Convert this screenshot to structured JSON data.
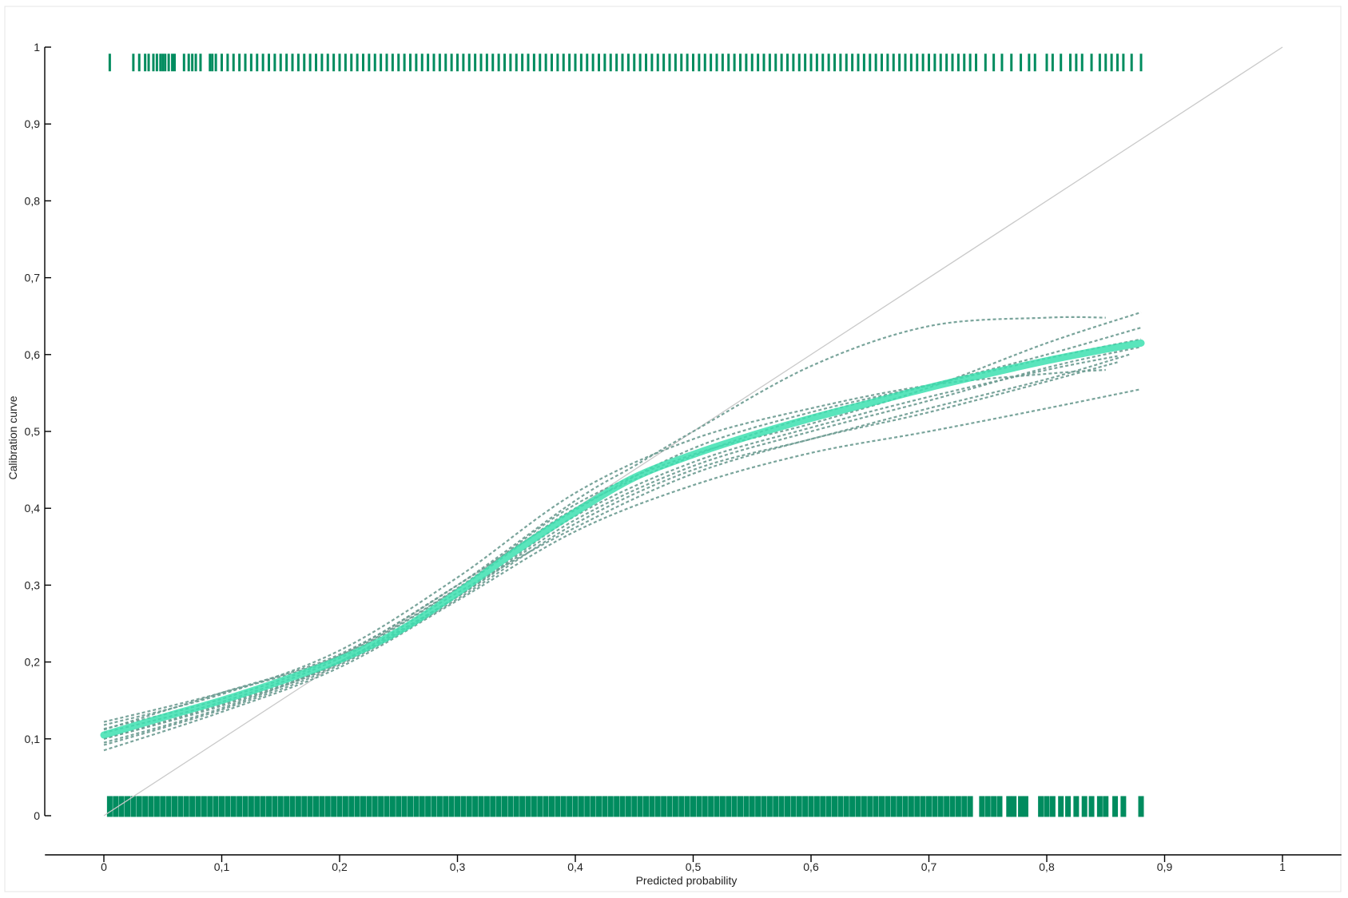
{
  "chart_data": {
    "type": "line",
    "title": "",
    "xlabel": "Predicted probability",
    "ylabel": "Calibration curve",
    "xlim": [
      -0.05,
      1.05
    ],
    "ylim": [
      0,
      1
    ],
    "x_ticks": [
      "0",
      "0,1",
      "0,2",
      "0,3",
      "0,4",
      "0,5",
      "0,6",
      "0,7",
      "0,8",
      "0,9",
      "1"
    ],
    "y_ticks": [
      "0",
      "0,1",
      "0,2",
      "0,3",
      "0,4",
      "0,5",
      "0,6",
      "0,7",
      "0,8",
      "0,9",
      "1"
    ],
    "grid": false,
    "legend": "none",
    "colors": {
      "rug": "#008c5f",
      "mean_curve": "#3de0b0",
      "bootstrap_curves": "#6a9a90",
      "reference_line": "#c9c9c9",
      "axes": "#000000"
    },
    "reference_line": {
      "x": [
        0,
        1
      ],
      "y": [
        0,
        1
      ]
    },
    "mean_curve": {
      "x": [
        0,
        0.05,
        0.1,
        0.15,
        0.2,
        0.25,
        0.3,
        0.35,
        0.4,
        0.45,
        0.5,
        0.55,
        0.6,
        0.65,
        0.7,
        0.75,
        0.8,
        0.85,
        0.88
      ],
      "y": [
        0.105,
        0.128,
        0.15,
        0.175,
        0.203,
        0.24,
        0.29,
        0.345,
        0.395,
        0.44,
        0.47,
        0.495,
        0.517,
        0.537,
        0.557,
        0.575,
        0.592,
        0.607,
        0.615
      ]
    },
    "bootstrap_curves": [
      {
        "x": [
          0,
          0.1,
          0.2,
          0.3,
          0.4,
          0.45,
          0.5,
          0.6,
          0.7,
          0.8,
          0.85
        ],
        "y": [
          0.112,
          0.16,
          0.21,
          0.3,
          0.41,
          0.455,
          0.5,
          0.585,
          0.637,
          0.648,
          0.648
        ]
      },
      {
        "x": [
          0,
          0.1,
          0.2,
          0.3,
          0.4,
          0.5,
          0.6,
          0.7,
          0.8,
          0.88
        ],
        "y": [
          0.085,
          0.135,
          0.193,
          0.28,
          0.37,
          0.43,
          0.472,
          0.5,
          0.53,
          0.555
        ]
      },
      {
        "x": [
          0,
          0.1,
          0.2,
          0.3,
          0.4,
          0.5,
          0.6,
          0.7,
          0.8,
          0.88
        ],
        "y": [
          0.122,
          0.16,
          0.208,
          0.296,
          0.405,
          0.47,
          0.51,
          0.557,
          0.615,
          0.655
        ]
      },
      {
        "x": [
          0,
          0.1,
          0.2,
          0.3,
          0.4,
          0.5,
          0.6,
          0.7,
          0.8,
          0.86
        ],
        "y": [
          0.1,
          0.145,
          0.2,
          0.29,
          0.375,
          0.445,
          0.49,
          0.525,
          0.565,
          0.59
        ]
      },
      {
        "x": [
          0,
          0.1,
          0.2,
          0.3,
          0.4,
          0.5,
          0.6,
          0.7,
          0.8,
          0.88
        ],
        "y": [
          0.095,
          0.14,
          0.2,
          0.285,
          0.385,
          0.455,
          0.5,
          0.54,
          0.583,
          0.61
        ]
      },
      {
        "x": [
          0,
          0.1,
          0.2,
          0.3,
          0.4,
          0.5,
          0.6,
          0.7,
          0.8,
          0.85
        ],
        "y": [
          0.118,
          0.158,
          0.215,
          0.31,
          0.42,
          0.49,
          0.53,
          0.56,
          0.575,
          0.58
        ]
      },
      {
        "x": [
          0,
          0.1,
          0.2,
          0.3,
          0.4,
          0.5,
          0.6,
          0.7,
          0.8,
          0.88
        ],
        "y": [
          0.108,
          0.148,
          0.205,
          0.295,
          0.4,
          0.468,
          0.52,
          0.56,
          0.6,
          0.635
        ]
      },
      {
        "x": [
          0,
          0.1,
          0.2,
          0.3,
          0.4,
          0.5,
          0.6,
          0.7,
          0.8,
          0.86
        ],
        "y": [
          0.1,
          0.143,
          0.198,
          0.285,
          0.39,
          0.46,
          0.505,
          0.545,
          0.58,
          0.598
        ]
      },
      {
        "x": [
          0,
          0.1,
          0.2,
          0.3,
          0.4,
          0.5,
          0.6,
          0.7,
          0.8,
          0.88
        ],
        "y": [
          0.113,
          0.152,
          0.208,
          0.3,
          0.398,
          0.478,
          0.525,
          0.56,
          0.595,
          0.62
        ]
      },
      {
        "x": [
          0,
          0.1,
          0.2,
          0.3,
          0.4,
          0.5,
          0.6,
          0.7,
          0.8,
          0.87
        ],
        "y": [
          0.092,
          0.138,
          0.196,
          0.282,
          0.38,
          0.45,
          0.49,
          0.53,
          0.568,
          0.6
        ]
      }
    ],
    "rug_events": {
      "y": 0.98,
      "x": [
        0.005,
        0.025,
        0.03,
        0.035,
        0.038,
        0.042,
        0.045,
        0.048,
        0.05,
        0.052,
        0.055,
        0.058,
        0.06,
        0.068,
        0.072,
        0.075,
        0.078,
        0.082,
        0.09,
        0.092,
        0.095,
        0.1,
        0.105,
        0.11,
        0.115,
        0.12,
        0.125,
        0.13,
        0.135,
        0.14,
        0.145,
        0.15,
        0.155,
        0.16,
        0.165,
        0.17,
        0.175,
        0.18,
        0.185,
        0.19,
        0.195,
        0.2,
        0.205,
        0.21,
        0.215,
        0.22,
        0.225,
        0.23,
        0.235,
        0.24,
        0.245,
        0.25,
        0.255,
        0.26,
        0.265,
        0.27,
        0.275,
        0.28,
        0.285,
        0.29,
        0.295,
        0.3,
        0.305,
        0.31,
        0.315,
        0.32,
        0.325,
        0.33,
        0.335,
        0.34,
        0.345,
        0.35,
        0.355,
        0.36,
        0.365,
        0.37,
        0.375,
        0.38,
        0.385,
        0.39,
        0.395,
        0.4,
        0.405,
        0.41,
        0.415,
        0.42,
        0.425,
        0.43,
        0.435,
        0.44,
        0.445,
        0.45,
        0.455,
        0.46,
        0.465,
        0.47,
        0.475,
        0.48,
        0.485,
        0.49,
        0.495,
        0.5,
        0.505,
        0.51,
        0.515,
        0.52,
        0.525,
        0.53,
        0.535,
        0.54,
        0.545,
        0.55,
        0.555,
        0.56,
        0.565,
        0.57,
        0.575,
        0.58,
        0.585,
        0.59,
        0.595,
        0.6,
        0.605,
        0.61,
        0.615,
        0.62,
        0.625,
        0.63,
        0.635,
        0.64,
        0.645,
        0.65,
        0.655,
        0.66,
        0.665,
        0.67,
        0.675,
        0.68,
        0.685,
        0.69,
        0.695,
        0.7,
        0.705,
        0.71,
        0.715,
        0.72,
        0.725,
        0.73,
        0.735,
        0.74,
        0.748,
        0.755,
        0.762,
        0.77,
        0.778,
        0.785,
        0.79,
        0.8,
        0.805,
        0.812,
        0.82,
        0.825,
        0.83,
        0.838,
        0.845,
        0.85,
        0.855,
        0.86,
        0.865,
        0.872,
        0.88
      ]
    },
    "rug_nonevents": {
      "y": 0.012,
      "x": [
        0.005,
        0.01,
        0.015,
        0.02,
        0.025,
        0.03,
        0.035,
        0.04,
        0.045,
        0.05,
        0.055,
        0.06,
        0.065,
        0.07,
        0.075,
        0.08,
        0.085,
        0.09,
        0.095,
        0.1,
        0.105,
        0.11,
        0.115,
        0.12,
        0.125,
        0.13,
        0.135,
        0.14,
        0.145,
        0.15,
        0.155,
        0.16,
        0.165,
        0.17,
        0.175,
        0.18,
        0.185,
        0.19,
        0.195,
        0.2,
        0.205,
        0.21,
        0.215,
        0.22,
        0.225,
        0.23,
        0.235,
        0.24,
        0.245,
        0.25,
        0.255,
        0.26,
        0.265,
        0.27,
        0.275,
        0.28,
        0.285,
        0.29,
        0.295,
        0.3,
        0.305,
        0.31,
        0.315,
        0.32,
        0.325,
        0.33,
        0.335,
        0.34,
        0.345,
        0.35,
        0.355,
        0.36,
        0.365,
        0.37,
        0.375,
        0.38,
        0.385,
        0.39,
        0.395,
        0.4,
        0.405,
        0.41,
        0.415,
        0.42,
        0.425,
        0.43,
        0.435,
        0.44,
        0.445,
        0.45,
        0.455,
        0.46,
        0.465,
        0.47,
        0.475,
        0.48,
        0.485,
        0.49,
        0.495,
        0.5,
        0.505,
        0.51,
        0.515,
        0.52,
        0.525,
        0.53,
        0.535,
        0.54,
        0.545,
        0.55,
        0.555,
        0.56,
        0.565,
        0.57,
        0.575,
        0.58,
        0.585,
        0.59,
        0.595,
        0.6,
        0.605,
        0.61,
        0.615,
        0.62,
        0.625,
        0.63,
        0.635,
        0.64,
        0.645,
        0.65,
        0.655,
        0.66,
        0.665,
        0.67,
        0.675,
        0.68,
        0.685,
        0.69,
        0.695,
        0.7,
        0.705,
        0.71,
        0.715,
        0.72,
        0.725,
        0.73,
        0.735,
        0.745,
        0.75,
        0.755,
        0.76,
        0.768,
        0.772,
        0.778,
        0.782,
        0.795,
        0.8,
        0.805,
        0.812,
        0.818,
        0.825,
        0.832,
        0.838,
        0.845,
        0.85,
        0.858,
        0.865,
        0.88
      ]
    }
  }
}
